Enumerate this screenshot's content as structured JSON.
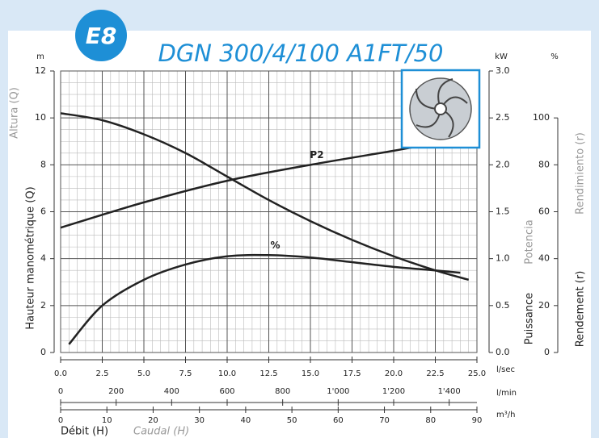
{
  "chart_data": {
    "type": "line",
    "badge": "E8",
    "title": "DGN 300/4/100 A1FT/50",
    "xlabel": "Débit (H)",
    "xlabel_alt": "Caudal (H)",
    "x_axes": [
      {
        "unit": "l/sec",
        "xlim": [
          0,
          25
        ],
        "xticks": [
          {
            "value": 0,
            "label": "0.0"
          },
          {
            "value": 2.5,
            "label": "2.5"
          },
          {
            "value": 5,
            "label": "5.0"
          },
          {
            "value": 7.5,
            "label": "7.5"
          },
          {
            "value": 10,
            "label": "10.0"
          },
          {
            "value": 12.5,
            "label": "12.5"
          },
          {
            "value": 15,
            "label": "15.0"
          },
          {
            "value": 17.5,
            "label": "17.5"
          },
          {
            "value": 20,
            "label": "20.0"
          },
          {
            "value": 22.5,
            "label": "22.5"
          },
          {
            "value": 25,
            "label": "25.0"
          }
        ]
      },
      {
        "unit": "l/min",
        "xlim": [
          0,
          1500
        ],
        "xticks": [
          0,
          200,
          400,
          600,
          800,
          {
            "value": 1000,
            "label": "1'000"
          },
          {
            "value": 1200,
            "label": "1'200"
          },
          {
            "value": 1400,
            "label": "1'400"
          }
        ]
      },
      {
        "unit": "m³/h",
        "xlim": [
          0,
          90
        ],
        "xticks": [
          0,
          10,
          20,
          30,
          40,
          50,
          60,
          70,
          80,
          90
        ]
      }
    ],
    "y_axes": [
      {
        "unit": "m",
        "label": "Hauteur manométrique (Q)",
        "label_alt": "Altura (Q)",
        "ylim": [
          0,
          12
        ],
        "yticks": [
          0,
          2,
          4,
          6,
          8,
          10,
          12
        ]
      },
      {
        "unit": "kW",
        "label": "Puissance",
        "label_alt": "Potencia",
        "ylim": [
          0,
          3
        ],
        "yticks": [
          {
            "value": 0,
            "label": "0.0"
          },
          0.5,
          {
            "value": 1,
            "label": "1.0"
          },
          1.5,
          {
            "value": 2,
            "label": "2.0"
          },
          2.5,
          {
            "value": 3,
            "label": "3.0"
          }
        ]
      },
      {
        "unit": "%",
        "label": "Rendement (r)",
        "label_alt": "Rendimiento (r)",
        "ylim": [
          0,
          120
        ],
        "yticks": [
          0,
          20,
          40,
          60,
          80,
          100
        ]
      }
    ],
    "grid": true,
    "series": [
      {
        "axis": 0,
        "color": "#222222",
        "x": [
          0,
          2.5,
          5,
          7.5,
          10,
          12.5,
          15,
          17.5,
          20,
          22.5,
          24.5
        ],
        "values": [
          10.2,
          9.9,
          9.3,
          8.5,
          7.5,
          6.5,
          5.6,
          4.8,
          4.1,
          3.5,
          3.1
        ]
      },
      {
        "name": "P2",
        "axis": 1,
        "color": "#222222",
        "x": [
          0,
          5,
          10,
          15,
          20,
          21.5
        ],
        "values": [
          1.33,
          1.6,
          1.83,
          2.0,
          2.15,
          2.2
        ]
      },
      {
        "name": "%",
        "axis": 2,
        "color": "#222222",
        "x": [
          0.5,
          2.5,
          5,
          7.5,
          10,
          12.5,
          15,
          17.5,
          20,
          22.5,
          24
        ],
        "values": [
          3.5,
          20,
          31,
          37.5,
          41,
          41.5,
          40.5,
          38.5,
          36.5,
          35,
          34
        ]
      }
    ]
  }
}
